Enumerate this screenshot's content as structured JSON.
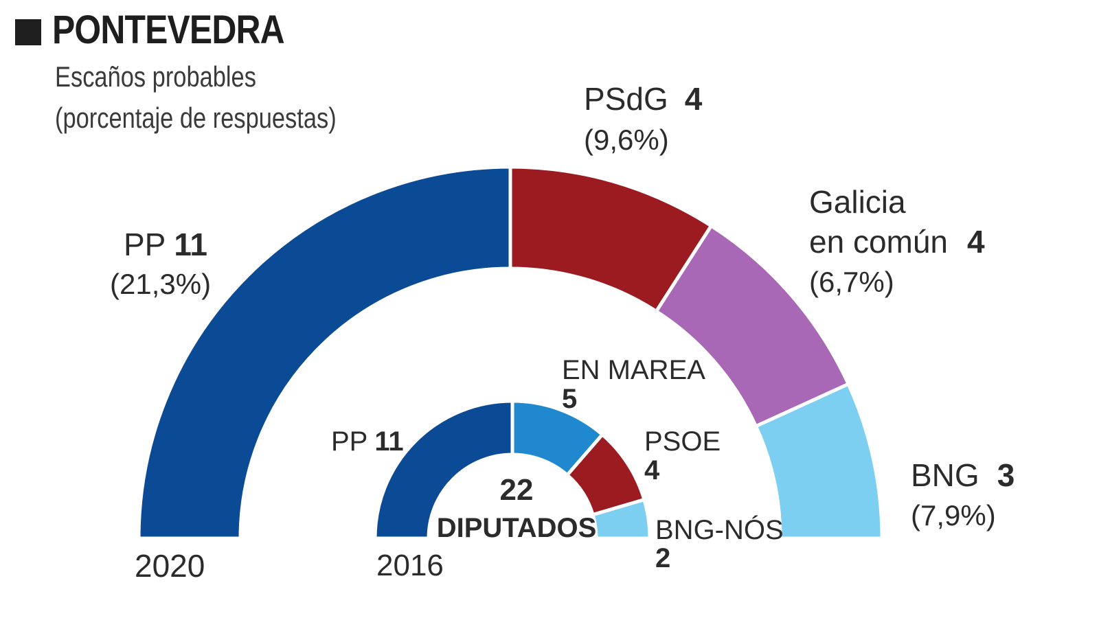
{
  "header": {
    "title": "PONTEVEDRA",
    "subtitle_line1": "Escaños probables",
    "subtitle_line2": "(porcentaje de respuestas)"
  },
  "chart_data": [
    {
      "type": "pie",
      "subtype": "half-donut",
      "year": "2020",
      "series": [
        {
          "name": "PP",
          "seats": 11,
          "pct": "(21,3%)",
          "color": "#0b4a94"
        },
        {
          "name": "PSdG",
          "seats": 4,
          "pct": "(9,6%)",
          "color": "#9b1b20"
        },
        {
          "name": "Galicia en común",
          "name_line1": "Galicia",
          "name_line2": "en común",
          "seats": 4,
          "pct": "(6,7%)",
          "color": "#a868b5"
        },
        {
          "name": "BNG",
          "seats": 3,
          "pct": "(7,9%)",
          "color": "#7ccff0"
        }
      ]
    },
    {
      "type": "pie",
      "subtype": "half-donut",
      "year": "2016",
      "center_number": "22",
      "center_label": "DIPUTADOS",
      "series": [
        {
          "name": "PP",
          "seats": 11,
          "color": "#0b4a94"
        },
        {
          "name": "EN MAREA",
          "seats": 5,
          "color": "#1f88cf"
        },
        {
          "name": "PSOE",
          "seats": 4,
          "color": "#9b1b20"
        },
        {
          "name": "BNG-NÓS",
          "seats": 2,
          "color": "#7ccff0"
        }
      ]
    }
  ]
}
